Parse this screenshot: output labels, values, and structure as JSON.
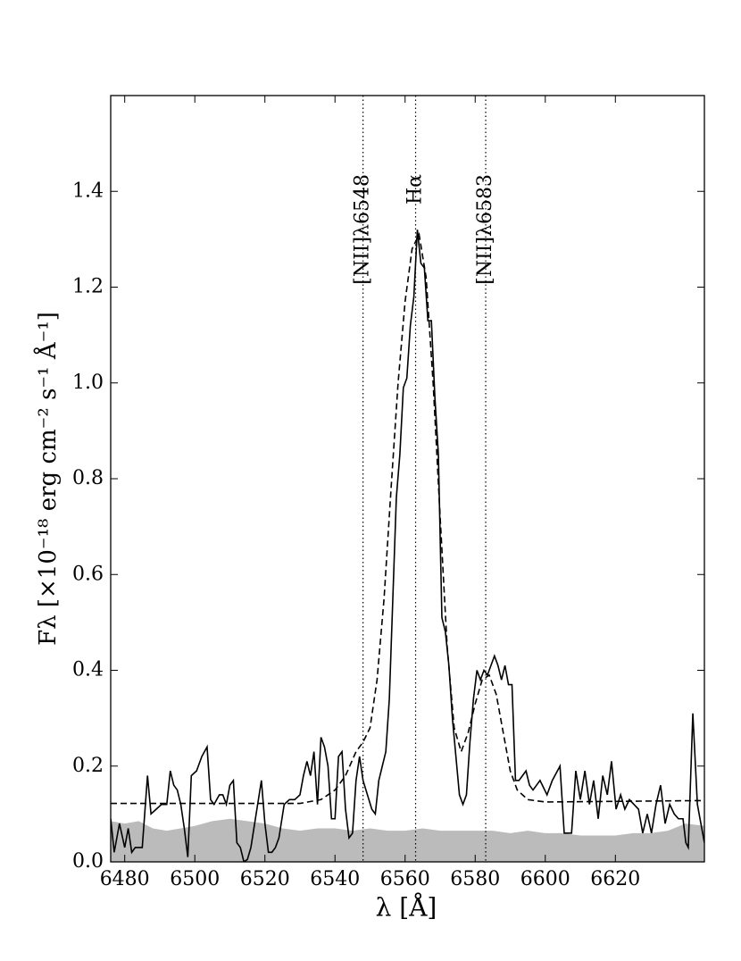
{
  "chart_data": {
    "type": "line",
    "xlabel": "λ [Å]",
    "ylabel": "Fλ [×10⁻¹⁸ erg cm⁻² s⁻¹ Å⁻¹]",
    "xlim": [
      6476,
      6645.4
    ],
    "ylim": [
      0,
      1.6
    ],
    "xticks": [
      6480,
      6500,
      6520,
      6540,
      6560,
      6580,
      6600,
      6620
    ],
    "yticks": [
      {
        "value": 0,
        "label": "0.0"
      },
      0.2,
      0.4,
      0.6,
      0.8,
      {
        "value": 1,
        "label": "1.0"
      },
      1.2,
      1.4
    ],
    "series": [
      {
        "style": "fill",
        "color": "#bbbbbb",
        "x": [
          6476,
          6480,
          6484,
          6488,
          6492,
          6496,
          6500,
          6505,
          6510,
          6515,
          6520,
          6525,
          6530,
          6535,
          6540,
          6545,
          6550,
          6555,
          6560,
          6565,
          6570,
          6575,
          6580,
          6585,
          6590,
          6595,
          6600,
          6605,
          6610,
          6615,
          6620,
          6625,
          6630,
          6635,
          6640,
          6645.4
        ],
        "values": [
          0.085,
          0.08,
          0.085,
          0.07,
          0.065,
          0.07,
          0.075,
          0.085,
          0.09,
          0.085,
          0.08,
          0.07,
          0.065,
          0.07,
          0.07,
          0.065,
          0.07,
          0.065,
          0.065,
          0.07,
          0.065,
          0.065,
          0.065,
          0.065,
          0.06,
          0.065,
          0.06,
          0.06,
          0.055,
          0.055,
          0.055,
          0.06,
          0.06,
          0.065,
          0.08,
          0.075
        ]
      },
      {
        "style": "solid",
        "color": "#000000",
        "x": [
          6476,
          6477,
          6478.5,
          6480,
          6481,
          6482,
          6483,
          6485,
          6486.5,
          6487.5,
          6489,
          6490.5,
          6492,
          6493,
          6494,
          6495,
          6496,
          6497,
          6498,
          6499,
          6500.5,
          6502,
          6503.5,
          6504.5,
          6505.5,
          6507,
          6508,
          6509,
          6510,
          6511,
          6512,
          6513,
          6514,
          6515,
          6516,
          6517.5,
          6519,
          6520,
          6521,
          6522,
          6523,
          6524,
          6525.5,
          6527,
          6528.5,
          6530,
          6531,
          6532,
          6533,
          6534,
          6535,
          6536,
          6537,
          6538,
          6539,
          6540,
          6541,
          6542,
          6543,
          6544,
          6545,
          6546,
          6547,
          6548,
          6550.5,
          6551.5,
          6552.5,
          6553.5,
          6554.5,
          6555.5,
          6556.5,
          6557.5,
          6558.5,
          6559.5,
          6560.5,
          6561.5,
          6562.5,
          6563.5,
          6564.5,
          6565.5,
          6566.5,
          6567.5,
          6568.5,
          6569.5,
          6570.5,
          6571.5,
          6572.5,
          6573.5,
          6574.5,
          6575.5,
          6576.5,
          6577.5,
          6578.5,
          6579.5,
          6580.5,
          6581.5,
          6582.5,
          6583.5,
          6584.5,
          6585.5,
          6586.5,
          6587.5,
          6588.5,
          6589.5,
          6590.5,
          6591.5,
          6592.5,
          6593.5,
          6594.5,
          6595.5,
          6596.5,
          6597.5,
          6598.5,
          6600.5,
          6602,
          6604.2,
          6605.4,
          6607.5,
          6608.7,
          6610,
          6611.3,
          6612.6,
          6613.8,
          6615.1,
          6616.4,
          6617.7,
          6618.9,
          6620.2,
          6621.5,
          6622.7,
          6624,
          6625.3,
          6626.6,
          6627.8,
          6629.1,
          6630.3,
          6631.6,
          6632.9,
          6634.2,
          6635.5,
          6636.8,
          6638,
          6639.3,
          6640.1,
          6640.8,
          6642.1,
          6643.4,
          6645.4
        ],
        "values": [
          0.09,
          0.02,
          0.08,
          0.03,
          0.07,
          0.02,
          0.03,
          0.03,
          0.18,
          0.1,
          0.11,
          0.12,
          0.12,
          0.19,
          0.16,
          0.15,
          0.12,
          0.07,
          0.01,
          0.18,
          0.19,
          0.22,
          0.24,
          0.13,
          0.12,
          0.14,
          0.14,
          0.12,
          0.16,
          0.17,
          0.04,
          0.03,
          0,
          0.005,
          0.03,
          0.1,
          0.17,
          0.08,
          0.02,
          0.02,
          0.03,
          0.05,
          0.12,
          0.13,
          0.13,
          0.14,
          0.18,
          0.21,
          0.18,
          0.23,
          0.12,
          0.26,
          0.24,
          0.2,
          0.09,
          0.09,
          0.22,
          0.23,
          0.11,
          0.05,
          0.06,
          0.17,
          0.22,
          0.17,
          0.11,
          0.1,
          0.17,
          0.2,
          0.23,
          0.34,
          0.55,
          0.76,
          0.85,
          0.99,
          1.01,
          1.12,
          1.18,
          1.32,
          1.25,
          1.24,
          1.13,
          1.13,
          0.97,
          0.85,
          0.51,
          0.48,
          0.41,
          0.3,
          0.22,
          0.14,
          0.12,
          0.14,
          0.25,
          0.34,
          0.4,
          0.38,
          0.4,
          0.39,
          0.41,
          0.43,
          0.41,
          0.38,
          0.41,
          0.37,
          0.37,
          0.17,
          0.17,
          0.18,
          0.19,
          0.16,
          0.15,
          0.16,
          0.17,
          0.14,
          0.17,
          0.2,
          0.06,
          0.06,
          0.19,
          0.13,
          0.19,
          0.12,
          0.17,
          0.09,
          0.18,
          0.14,
          0.21,
          0.11,
          0.14,
          0.11,
          0.13,
          0.12,
          0.11,
          0.06,
          0.1,
          0.06,
          0.12,
          0.16,
          0.08,
          0.12,
          0.1,
          0.09,
          0.09,
          0.04,
          0.03,
          0.31,
          0.12,
          0.04
        ]
      },
      {
        "style": "dashed",
        "color": "#000000",
        "x": [
          6476,
          6530,
          6536,
          6540,
          6543,
          6546,
          6548,
          6550,
          6552,
          6554,
          6556,
          6558,
          6560,
          6562,
          6564,
          6566,
          6568,
          6570,
          6572,
          6574,
          6576,
          6578,
          6580,
          6582,
          6584,
          6586,
          6588,
          6590,
          6592,
          6595,
          6600,
          6645.4
        ],
        "values": [
          0.122,
          0.122,
          0.13,
          0.15,
          0.18,
          0.23,
          0.25,
          0.28,
          0.38,
          0.55,
          0.78,
          1.0,
          1.17,
          1.28,
          1.31,
          1.22,
          1.0,
          0.72,
          0.45,
          0.28,
          0.23,
          0.27,
          0.33,
          0.38,
          0.39,
          0.35,
          0.27,
          0.19,
          0.15,
          0.13,
          0.125,
          0.128
        ]
      }
    ],
    "lines": [
      {
        "x": 6548,
        "label": "[NII]λ6548"
      },
      {
        "x": 6563,
        "label": "Hα"
      },
      {
        "x": 6583,
        "label": "[NII]λ6583"
      }
    ]
  }
}
